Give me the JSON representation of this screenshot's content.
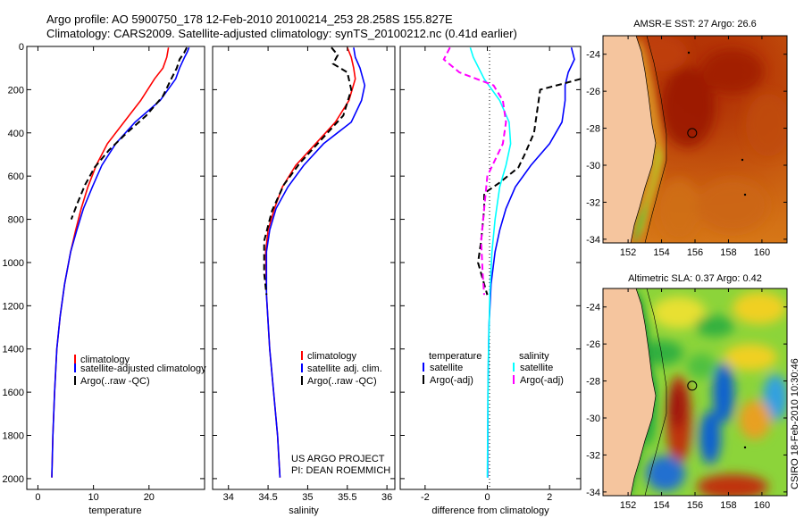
{
  "header": {
    "line1": "Argo profile: AO 5900750_178 12-Feb-2010 20100214_253 28.258S 155.827E",
    "line2": "Climatology: CARS2009. Satellite-adjusted climatology: synTS_20100212.nc (0.41d earlier)"
  },
  "colors": {
    "climatology": "#ff0000",
    "satellite": "#0000ff",
    "argo": "#000000",
    "salinity_satellite": "#00ffff",
    "salinity_argo": "#ff00ff"
  },
  "credit": {
    "line1": "US ARGO PROJECT",
    "line2": "PI: DEAN ROEMMICH"
  },
  "side_label": "CSIRO 18-Feb-2010 10:30:46",
  "chart_data": [
    {
      "type": "line",
      "panel": "temperature",
      "xlabel": "temperature",
      "ylabel": "",
      "xlim": [
        -2,
        30
      ],
      "ylim": [
        2050,
        0
      ],
      "xticks": [
        "0",
        "10",
        "20"
      ],
      "xtick_values": [
        0,
        10,
        20
      ],
      "yticks": [
        "0",
        "200",
        "400",
        "600",
        "800",
        "1000",
        "1200",
        "1400",
        "1600",
        "1800",
        "2000"
      ],
      "ytick_values": [
        0,
        200,
        400,
        600,
        800,
        1000,
        1200,
        1400,
        1600,
        1800,
        2000
      ],
      "legend": [
        "climatology",
        "satellite-adjusted climatology",
        "Argo(..raw -QC)"
      ],
      "series": [
        {
          "name": "climatology",
          "color": "#ff0000",
          "style": "solid",
          "x": [
            23.5,
            23.2,
            22.5,
            21.0,
            18.5,
            15.5,
            12.5,
            10.5,
            9.0,
            7.8,
            6.8,
            5.9,
            4.8,
            4.0,
            3.4,
            3.0,
            2.7,
            2.5
          ],
          "y": [
            5,
            50,
            100,
            150,
            250,
            350,
            450,
            550,
            650,
            750,
            850,
            950,
            1100,
            1250,
            1400,
            1600,
            1800,
            1995
          ]
        },
        {
          "name": "satellite-adjusted climatology",
          "color": "#0000ff",
          "style": "solid",
          "x": [
            27.2,
            26.9,
            26.4,
            25.5,
            24.8,
            22.0,
            17.5,
            14.0,
            11.5,
            9.8,
            8.2,
            7.0,
            5.9,
            4.8,
            4.0,
            3.4,
            3.0,
            2.7,
            2.5
          ],
          "y": [
            5,
            25,
            50,
            100,
            150,
            250,
            350,
            450,
            550,
            650,
            750,
            850,
            950,
            1100,
            1250,
            1400,
            1600,
            1800,
            1995
          ]
        },
        {
          "name": "Argo(..raw -QC)",
          "color": "#000000",
          "style": "dashed",
          "x": [
            26.8,
            26.3,
            25.5,
            25.0,
            24.0,
            22.5,
            19.5,
            16.0,
            12.8,
            10.2,
            8.5,
            7.2,
            6.0
          ],
          "y": [
            5,
            30,
            60,
            100,
            150,
            230,
            320,
            400,
            480,
            560,
            640,
            720,
            800
          ]
        }
      ]
    },
    {
      "type": "line",
      "panel": "salinity",
      "xlabel": "salinity",
      "ylabel": "",
      "xlim": [
        33.8,
        36.1
      ],
      "ylim": [
        2050,
        0
      ],
      "xticks": [
        "34",
        "34.5",
        "35",
        "35.5",
        "36"
      ],
      "xtick_values": [
        34,
        34.5,
        35,
        35.5,
        36
      ],
      "legend": [
        "climatology",
        "satellite adj. clim.",
        "Argo(..raw -QC)"
      ],
      "series": [
        {
          "name": "climatology",
          "color": "#ff0000",
          "style": "solid",
          "x": [
            35.5,
            35.55,
            35.58,
            35.6,
            35.52,
            35.35,
            35.1,
            34.85,
            34.68,
            34.58,
            34.5,
            34.47,
            34.48,
            34.52,
            34.57,
            34.62,
            34.65
          ],
          "y": [
            5,
            50,
            100,
            150,
            250,
            350,
            450,
            550,
            650,
            750,
            850,
            950,
            1150,
            1400,
            1600,
            1800,
            1995
          ]
        },
        {
          "name": "satellite adj. clim.",
          "color": "#0000ff",
          "style": "solid",
          "x": [
            35.58,
            35.6,
            35.66,
            35.72,
            35.68,
            35.55,
            35.2,
            34.95,
            34.75,
            34.6,
            34.52,
            34.48,
            34.48,
            34.52,
            34.57,
            34.62,
            34.65
          ],
          "y": [
            5,
            50,
            100,
            180,
            250,
            350,
            450,
            550,
            650,
            750,
            850,
            950,
            1150,
            1400,
            1600,
            1800,
            1995
          ]
        },
        {
          "name": "Argo(..raw -QC)",
          "color": "#000000",
          "style": "dashed",
          "x": [
            35.3,
            35.38,
            35.32,
            35.5,
            35.55,
            35.45,
            35.15,
            34.9,
            34.7,
            34.55,
            34.45,
            34.45,
            34.48
          ],
          "y": [
            5,
            40,
            80,
            120,
            200,
            320,
            440,
            540,
            640,
            760,
            900,
            1050,
            1150
          ]
        }
      ]
    },
    {
      "type": "line",
      "panel": "difference",
      "xlabel": "difference from climatology",
      "ylabel": "",
      "xlim": [
        -2.8,
        3.0
      ],
      "ylim": [
        2050,
        0
      ],
      "xticks": [
        "-2",
        "0",
        "2"
      ],
      "xtick_values": [
        -2,
        0,
        2
      ],
      "legend_groups": [
        {
          "title": "temperature",
          "entries": [
            "satellite",
            "Argo(-adj)"
          ]
        },
        {
          "title": "salinity",
          "entries": [
            "satellite",
            "Argo(-adj)"
          ]
        }
      ],
      "series": [
        {
          "name": "temperature satellite",
          "color": "#0000ff",
          "style": "solid",
          "x": [
            2.7,
            2.8,
            2.6,
            2.5,
            2.5,
            2.4,
            2.0,
            1.4,
            0.9,
            0.6,
            0.4,
            0.25,
            0.12,
            0.05,
            0.02,
            0.01
          ],
          "y": [
            5,
            60,
            120,
            180,
            250,
            350,
            450,
            550,
            650,
            750,
            850,
            950,
            1100,
            1300,
            1600,
            1995
          ]
        },
        {
          "name": "temperature Argo(-adj)",
          "color": "#000000",
          "style": "dashed",
          "x": [
            3.0,
            2.5,
            1.7,
            1.5,
            1.2,
            1.0,
            0.4,
            -0.1,
            -0.1,
            -0.2,
            -0.3,
            -0.1,
            0.0
          ],
          "y": [
            150,
            170,
            200,
            400,
            500,
            560,
            630,
            680,
            750,
            900,
            1000,
            1100,
            1150
          ]
        },
        {
          "name": "salinity satellite",
          "color": "#00ffff",
          "style": "solid",
          "x": [
            -0.55,
            -0.45,
            -0.1,
            0.4,
            0.7,
            0.75,
            0.6,
            0.4,
            0.25,
            0.15,
            0.08,
            0.03,
            0.0
          ],
          "y": [
            5,
            50,
            150,
            250,
            350,
            450,
            550,
            650,
            800,
            950,
            1150,
            1450,
            1995
          ]
        },
        {
          "name": "salinity Argo(-adj)",
          "color": "#ff00ff",
          "style": "dashed",
          "x": [
            -1.2,
            -1.4,
            -0.9,
            0.2,
            0.5,
            0.6,
            0.5,
            0.0,
            -0.1,
            -0.2,
            -0.15,
            -0.1
          ],
          "y": [
            5,
            60,
            120,
            180,
            250,
            350,
            450,
            600,
            750,
            900,
            1050,
            1150
          ]
        }
      ]
    },
    {
      "type": "heatmap",
      "panel": "sst-map",
      "title": "AMSR-E SST: 27 Argo: 26.6",
      "xticks": [
        "152",
        "154",
        "156",
        "158",
        "160"
      ],
      "xtick_values": [
        152,
        154,
        156,
        158,
        160
      ],
      "yticks": [
        "-24",
        "-26",
        "-28",
        "-30",
        "-32",
        "-34"
      ],
      "ytick_values": [
        -24,
        -26,
        -28,
        -30,
        -32,
        -34
      ],
      "xlim": [
        150.5,
        161.5
      ],
      "ylim": [
        -34.2,
        -23.0
      ],
      "float_position": [
        155.827,
        -28.258
      ]
    },
    {
      "type": "heatmap",
      "panel": "sla-map",
      "title": "Altimetric SLA: 0.37 Argo: 0.42",
      "xticks": [
        "152",
        "154",
        "156",
        "158",
        "160"
      ],
      "xtick_values": [
        152,
        154,
        156,
        158,
        160
      ],
      "yticks": [
        "-24",
        "-26",
        "-28",
        "-30",
        "-32",
        "-34"
      ],
      "ytick_values": [
        -24,
        -26,
        -28,
        -30,
        -32,
        -34
      ],
      "xlim": [
        150.5,
        161.5
      ],
      "ylim": [
        -34.2,
        -23.0
      ],
      "float_position": [
        155.827,
        -28.258
      ]
    }
  ]
}
